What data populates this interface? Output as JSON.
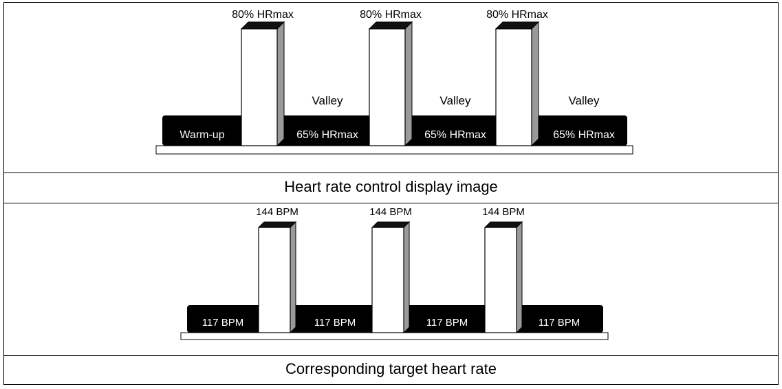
{
  "diagrams": [
    {
      "caption": "Heart rate control display image",
      "segments": [
        {
          "kind": "base",
          "label": "Warm-up"
        },
        {
          "kind": "peak",
          "label": "80% HRmax"
        },
        {
          "kind": "base",
          "label": "65% HRmax",
          "above": "Valley"
        },
        {
          "kind": "peak",
          "label": "80% HRmax"
        },
        {
          "kind": "base",
          "label": "65% HRmax",
          "above": "Valley"
        },
        {
          "kind": "peak",
          "label": "80% HRmax"
        },
        {
          "kind": "base",
          "label": "65% HRmax",
          "above": "Valley"
        }
      ]
    },
    {
      "caption": "Corresponding target heart rate",
      "segments": [
        {
          "kind": "base",
          "label": "117 BPM"
        },
        {
          "kind": "peak",
          "label": "144 BPM"
        },
        {
          "kind": "base",
          "label": "117 BPM"
        },
        {
          "kind": "peak",
          "label": "144 BPM"
        },
        {
          "kind": "base",
          "label": "117 BPM"
        },
        {
          "kind": "peak",
          "label": "144 BPM"
        },
        {
          "kind": "base",
          "label": "117 BPM"
        }
      ]
    }
  ]
}
